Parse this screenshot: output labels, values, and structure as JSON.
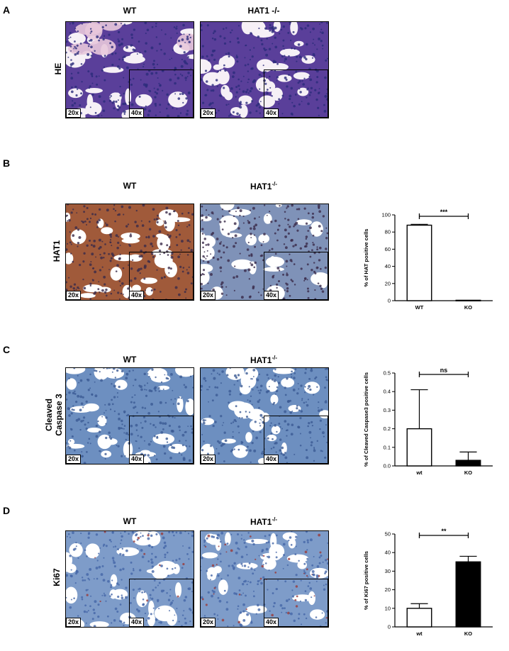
{
  "panels": {
    "A": {
      "letter": "A",
      "row_label": "HE",
      "col_wt": "WT",
      "col_ko": "HAT1 -/-",
      "mag_low": "20x",
      "mag_high": "40x",
      "stain_colors": {
        "background": "#e8c8dc",
        "tissue": "#5a3f9a",
        "nuclei": "#2b2c7a"
      }
    },
    "B": {
      "letter": "B",
      "row_label": "HAT1",
      "col_wt": "WT",
      "col_ko": "HAT1",
      "col_ko_sup": "-/-",
      "mag_low": "20x",
      "mag_high": "40x",
      "stain_colors": {
        "background": "#c9d8e6",
        "tissue_wt": "#a05a3a",
        "tissue_ko": "#7f92b8",
        "nuclei": "#3a2a4a"
      }
    },
    "C": {
      "letter": "C",
      "row_label_1": "Cleaved",
      "row_label_2": "Caspase 3",
      "col_wt": "WT",
      "col_ko": "HAT1",
      "col_ko_sup": "-/-",
      "mag_low": "20x",
      "mag_high": "40x",
      "stain_colors": {
        "background": "#dfe6ee",
        "tissue": "#6d8fc0",
        "nuclei": "#3b5a94"
      }
    },
    "D": {
      "letter": "D",
      "row_label": "Ki67",
      "col_wt": "WT",
      "col_ko": "HAT1",
      "col_ko_sup": "-/-",
      "mag_low": "20x",
      "mag_high": "40x",
      "stain_colors": {
        "background": "#dbe4ee",
        "tissue": "#7e9cc9",
        "nuclei": "#4566a8",
        "positive": "#9a3b3b"
      }
    }
  },
  "chart_data": [
    {
      "id": "B",
      "type": "bar",
      "categories": [
        "WT",
        "KO"
      ],
      "values": [
        88,
        0.5
      ],
      "errors": [
        1,
        0
      ],
      "fills": [
        "#ffffff",
        "#ffffff"
      ],
      "ylabel": "% of HAT positive cells",
      "ylim": [
        0,
        100
      ],
      "yticks": [
        "0",
        "20",
        "40",
        "60",
        "80",
        "100"
      ],
      "significance": "***"
    },
    {
      "id": "C",
      "type": "bar",
      "categories": [
        "wt",
        "KO"
      ],
      "values": [
        0.2,
        0.03
      ],
      "errors": [
        0.21,
        0.045
      ],
      "fills": [
        "#ffffff",
        "#000000"
      ],
      "ylabel": "% of Cleaved Caspase3 positive cells",
      "ylim": [
        0,
        0.5
      ],
      "yticks": [
        "0.0",
        "0.1",
        "0.2",
        "0.3",
        "0.4",
        "0.5"
      ],
      "significance": "ns"
    },
    {
      "id": "D",
      "type": "bar",
      "categories": [
        "wt",
        "KO"
      ],
      "values": [
        10,
        35
      ],
      "errors": [
        2.5,
        3
      ],
      "fills": [
        "#ffffff",
        "#000000"
      ],
      "ylabel": "% of Ki67 positive cells",
      "ylim": [
        0,
        50
      ],
      "yticks": [
        "0",
        "10",
        "20",
        "30",
        "40",
        "50"
      ],
      "significance": "**"
    }
  ]
}
